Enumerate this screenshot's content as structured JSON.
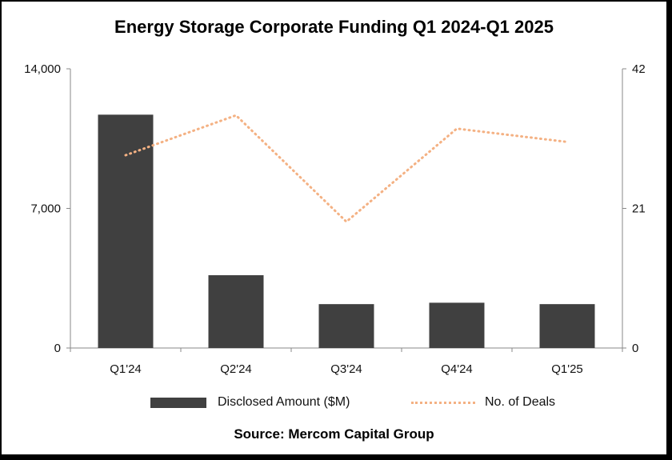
{
  "chart_data": {
    "type": "bar",
    "title": "Energy Storage Corporate Funding Q1 2024-Q1 2025",
    "categories": [
      "Q1'24",
      "Q2'24",
      "Q3'24",
      "Q4'24",
      "Q1'25"
    ],
    "series": [
      {
        "name": "Disclosed Amount ($M)",
        "type": "bar",
        "axis": "left",
        "color": "#404040",
        "values": [
          11700,
          3650,
          2200,
          2270,
          2200
        ]
      },
      {
        "name": "No. of Deals",
        "type": "line",
        "axis": "right",
        "color": "#f4b183",
        "style": "dotted",
        "values": [
          29,
          35,
          19,
          33,
          31
        ]
      }
    ],
    "y_left": {
      "min": 0,
      "max": 14000,
      "ticks": [
        0,
        7000,
        14000
      ],
      "tick_labels": [
        "0",
        "7,000",
        "14,000"
      ]
    },
    "y_right": {
      "min": 0,
      "max": 42,
      "ticks": [
        0,
        21,
        42
      ],
      "tick_labels": [
        "0",
        "21",
        "42"
      ]
    },
    "legend": {
      "position": "bottom"
    },
    "source": "Source: Mercom Capital Group"
  }
}
